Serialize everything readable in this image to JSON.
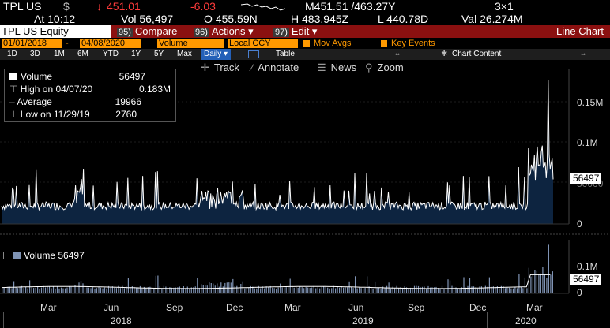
{
  "quote": {
    "ticker": "TPL US",
    "currency": "$",
    "arrow": "↓",
    "last": "451.01",
    "change": "-6.03",
    "bid": "M451.51 /463.27Y",
    "size": "3×1",
    "time": "At 10:12",
    "vol": "Vol 56,497",
    "open": "O 455.59N",
    "high": "H 483.945Z",
    "low": "L 440.78D",
    "value": "Val 26.274M"
  },
  "cmdbar": {
    "security": "TPL US Equity",
    "compare_num": "95)",
    "compare": "Compare",
    "actions_num": "96)",
    "actions": "Actions",
    "edit_num": "97)",
    "edit": "Edit",
    "chart_type": "Line Chart"
  },
  "options": {
    "start_date": "01/01/2018",
    "end_date": "04/08/2020",
    "field": "Volume",
    "ccy": "Local CCY",
    "mov_avgs": "Mov Avgs",
    "key_events": "Key Events"
  },
  "periods": {
    "items": [
      "1D",
      "3D",
      "1M",
      "6M",
      "YTD",
      "1Y",
      "5Y",
      "Max"
    ],
    "selected": "Daily",
    "table": "Table",
    "chart_content": "Chart Content"
  },
  "toolbar": {
    "track": "Track",
    "annotate": "Annotate",
    "news": "News",
    "zoom": "Zoom"
  },
  "legend": {
    "title": "Volume",
    "title_value": "56497",
    "high_label": "High on 04/07/20",
    "high_value": "0.183M",
    "avg_label": "Average",
    "avg_value": "19966",
    "low_label": "Low on 11/29/19",
    "low_value": "2760"
  },
  "lower_legend": {
    "label": "Volume",
    "value": "56497"
  },
  "colors": {
    "line": "#ffffff",
    "fill": "#0d2440",
    "bars": "#7f93b4",
    "ma": "#ffffff"
  },
  "chart_data": {
    "type": "area",
    "title": "",
    "series": [
      {
        "name": "Volume",
        "last": 56497,
        "high": 183000,
        "average": 19966,
        "low": 2760
      }
    ],
    "ylim": [
      0,
      190000
    ],
    "y_ticks": [
      "0.15M",
      "0.1M",
      "50000",
      "0"
    ],
    "lower_y_ticks": [
      "0.1M",
      "0"
    ],
    "x_ticks": [
      "Mar",
      "Jun",
      "Sep",
      "Dec",
      "Mar",
      "Jun",
      "Sep",
      "Dec",
      "Mar",
      "Mar"
    ],
    "x_years": [
      "2018",
      "2019",
      "2020"
    ],
    "last_value_label": "56497"
  }
}
